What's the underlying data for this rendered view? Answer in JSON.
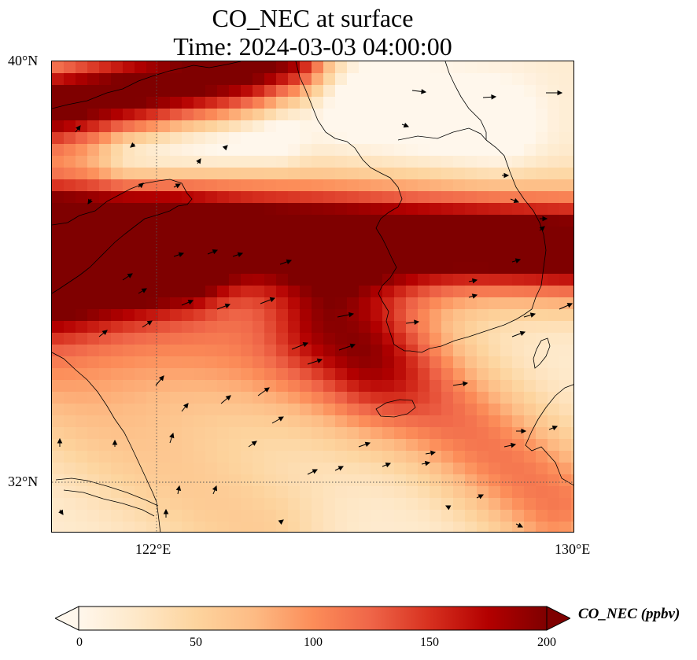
{
  "title": {
    "line1": "CO_NEC at surface",
    "line2": "Time: 2024-03-03 04:00:00"
  },
  "map": {
    "extent": {
      "lon_min": 120.4,
      "lon_max": 130,
      "lat_min": 31.2,
      "lat_max": 40
    },
    "lat_ticks": [
      {
        "value": 40,
        "label": "40°N"
      },
      {
        "value": 32,
        "label": "32°N"
      }
    ],
    "lon_ticks": [
      {
        "value": 122,
        "label": "122°E"
      },
      {
        "value": 130,
        "label": "130°E"
      }
    ],
    "gridlines": {
      "lon": [
        122
      ],
      "lat": [
        32
      ],
      "style": "dotted"
    },
    "colormap": "OrRd",
    "field_description": "high concentration band from NW China across Yellow Sea to central Korea; moderate plume extending SE over East China Sea toward Kyushu"
  },
  "colorbar": {
    "label": "CO_NEC (ppbv)",
    "min": 0,
    "max": 200,
    "extend": "both",
    "ticks": [
      "0",
      "50",
      "100",
      "150",
      "200"
    ],
    "colors": [
      "#fff7ec",
      "#fee8c8",
      "#fdd49e",
      "#fdbb84",
      "#fc8d59",
      "#ef6548",
      "#d7301f",
      "#b30000",
      "#7f0000"
    ]
  }
}
